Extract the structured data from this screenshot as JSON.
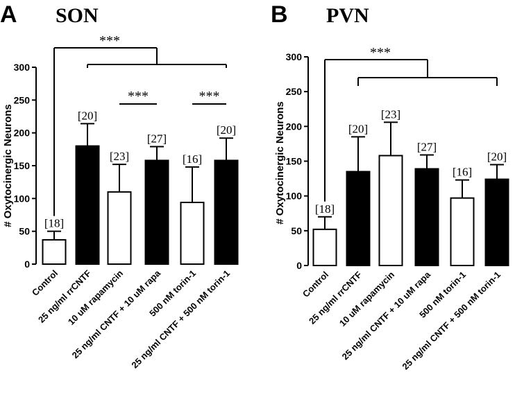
{
  "chart_data": [
    {
      "type": "bar",
      "panel": "A",
      "title": "SON",
      "ylabel": "# Oxytocinergic Neurons",
      "ylim": [
        0,
        300
      ],
      "yticks": [
        0,
        50,
        100,
        150,
        200,
        250,
        300
      ],
      "categories": [
        "Control",
        "25 ng/ml rrCNTF",
        "10 uM rapamycin",
        "25 ng/ml CNTF + 10 uM rapa",
        "500 nM torin-1",
        "25 ng/ml CNTF + 500 nM torin-1"
      ],
      "values": [
        37,
        180,
        110,
        158,
        94,
        158
      ],
      "errors": [
        13,
        34,
        42,
        21,
        54,
        34
      ],
      "fills": [
        "white",
        "black",
        "white",
        "black",
        "white",
        "black"
      ],
      "n_labels": [
        "[18]",
        "[20]",
        "[23]",
        "[27]",
        "[16]",
        "[20]"
      ],
      "significance": [
        {
          "label": "***",
          "type": "control_vs_group",
          "from": 0,
          "to": [
            1,
            5
          ]
        },
        {
          "label": "***",
          "type": "pair",
          "from": 2,
          "to": 3
        },
        {
          "label": "***",
          "type": "pair",
          "from": 4,
          "to": 5
        }
      ]
    },
    {
      "type": "bar",
      "panel": "B",
      "title": "PVN",
      "ylabel": "# Oxytocinergic Neurons",
      "ylim": [
        0,
        300
      ],
      "yticks": [
        0,
        50,
        100,
        150,
        200,
        250,
        300
      ],
      "categories": [
        "Control",
        "25 ng/ml rrCNTF",
        "10 uM rapamycin",
        "25 ng/ml CNTF + 10 uM rapa",
        "500 nM torin-1",
        "25 ng/ml CNTF + 500 nM torin-1"
      ],
      "values": [
        52,
        135,
        158,
        139,
        97,
        124
      ],
      "errors": [
        18,
        50,
        48,
        20,
        26,
        21
      ],
      "fills": [
        "white",
        "black",
        "white",
        "black",
        "white",
        "black"
      ],
      "n_labels": [
        "[18]",
        "[20]",
        "[23]",
        "[27]",
        "[16]",
        "[20]"
      ],
      "significance": [
        {
          "label": "***",
          "type": "control_vs_group",
          "from": 0,
          "to": [
            1,
            5
          ]
        }
      ]
    }
  ]
}
